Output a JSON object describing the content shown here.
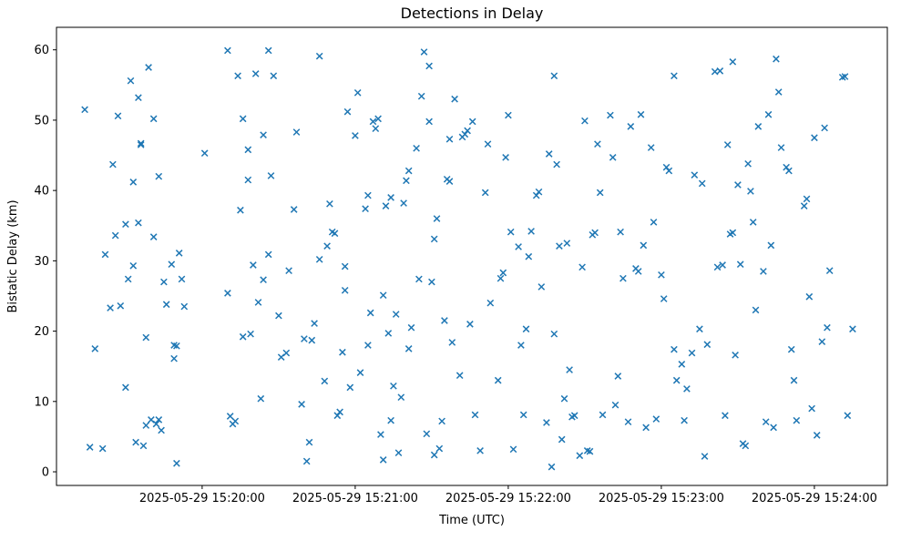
{
  "chart_data": {
    "type": "scatter",
    "title": "Detections in Delay",
    "xlabel": "Time (UTC)",
    "ylabel": "Bistatic Delay (km)",
    "marker": "x",
    "marker_color": "#1f77b4",
    "background_color": "#ffffff",
    "grid": false,
    "legend": false,
    "x_unit": "seconds after 2025-05-29 15:19:00 UTC",
    "xlim": [
      2.9,
      328.6
    ],
    "ylim": [
      -1.94,
      63.2
    ],
    "x_ticks": [
      {
        "t": 60,
        "label": "2025-05-29 15:20:00"
      },
      {
        "t": 120,
        "label": "2025-05-29 15:21:00"
      },
      {
        "t": 180,
        "label": "2025-05-29 15:22:00"
      },
      {
        "t": 240,
        "label": "2025-05-29 15:23:00"
      },
      {
        "t": 300,
        "label": "2025-05-29 15:24:00"
      }
    ],
    "y_ticks": [
      0,
      10,
      20,
      30,
      40,
      50,
      60
    ],
    "points": [
      [
        14,
        51.5
      ],
      [
        16,
        3.5
      ],
      [
        18,
        17.5
      ],
      [
        21,
        3.3
      ],
      [
        22,
        30.9
      ],
      [
        24,
        23.3
      ],
      [
        25,
        43.7
      ],
      [
        26,
        33.6
      ],
      [
        27,
        50.6
      ],
      [
        28,
        23.6
      ],
      [
        30,
        12.0
      ],
      [
        30,
        35.2
      ],
      [
        31,
        27.4
      ],
      [
        32,
        55.6
      ],
      [
        33,
        41.2
      ],
      [
        33,
        29.3
      ],
      [
        34,
        4.2
      ],
      [
        35,
        53.2
      ],
      [
        35,
        35.4
      ],
      [
        36,
        46.5
      ],
      [
        36,
        46.7
      ],
      [
        37,
        3.7
      ],
      [
        38,
        6.6
      ],
      [
        38,
        19.1
      ],
      [
        39,
        57.5
      ],
      [
        40,
        7.4
      ],
      [
        41,
        33.4
      ],
      [
        41,
        50.2
      ],
      [
        42,
        6.8
      ],
      [
        43,
        7.4
      ],
      [
        43,
        42.0
      ],
      [
        44,
        5.9
      ],
      [
        45,
        27.0
      ],
      [
        46,
        23.8
      ],
      [
        48,
        29.5
      ],
      [
        49,
        16.1
      ],
      [
        49,
        18.0
      ],
      [
        50,
        17.9
      ],
      [
        50,
        1.2
      ],
      [
        51,
        31.1
      ],
      [
        52,
        27.4
      ],
      [
        53,
        23.5
      ],
      [
        61,
        45.3
      ],
      [
        70,
        25.4
      ],
      [
        70,
        59.9
      ],
      [
        71,
        7.9
      ],
      [
        72,
        6.8
      ],
      [
        73,
        7.2
      ],
      [
        74,
        56.3
      ],
      [
        75,
        37.2
      ],
      [
        76,
        50.2
      ],
      [
        76,
        19.2
      ],
      [
        78,
        41.5
      ],
      [
        78,
        45.8
      ],
      [
        79,
        19.6
      ],
      [
        80,
        29.4
      ],
      [
        81,
        56.6
      ],
      [
        82,
        24.1
      ],
      [
        83,
        10.4
      ],
      [
        84,
        47.9
      ],
      [
        84,
        27.3
      ],
      [
        86,
        59.9
      ],
      [
        86,
        30.9
      ],
      [
        87,
        42.1
      ],
      [
        88,
        56.3
      ],
      [
        90,
        22.2
      ],
      [
        91,
        16.3
      ],
      [
        93,
        16.9
      ],
      [
        94,
        28.6
      ],
      [
        96,
        37.3
      ],
      [
        97,
        48.3
      ],
      [
        99,
        9.6
      ],
      [
        100,
        18.9
      ],
      [
        101,
        1.5
      ],
      [
        102,
        4.2
      ],
      [
        103,
        18.7
      ],
      [
        104,
        21.1
      ],
      [
        106,
        30.2
      ],
      [
        106,
        59.1
      ],
      [
        108,
        12.9
      ],
      [
        109,
        32.1
      ],
      [
        110,
        38.1
      ],
      [
        111,
        34.1
      ],
      [
        112,
        33.9
      ],
      [
        113,
        8.0
      ],
      [
        114,
        8.5
      ],
      [
        115,
        17.0
      ],
      [
        116,
        25.8
      ],
      [
        116,
        29.2
      ],
      [
        117,
        51.2
      ],
      [
        118,
        12.0
      ],
      [
        120,
        47.8
      ],
      [
        121,
        53.9
      ],
      [
        122,
        14.1
      ],
      [
        124,
        37.4
      ],
      [
        125,
        39.3
      ],
      [
        125,
        18.0
      ],
      [
        126,
        22.6
      ],
      [
        127,
        49.8
      ],
      [
        128,
        48.8
      ],
      [
        129,
        50.2
      ],
      [
        130,
        5.3
      ],
      [
        131,
        1.7
      ],
      [
        131,
        25.1
      ],
      [
        132,
        37.8
      ],
      [
        133,
        19.7
      ],
      [
        134,
        7.3
      ],
      [
        134,
        39.0
      ],
      [
        135,
        12.2
      ],
      [
        136,
        22.4
      ],
      [
        137,
        2.7
      ],
      [
        138,
        10.6
      ],
      [
        139,
        38.2
      ],
      [
        140,
        41.4
      ],
      [
        141,
        17.5
      ],
      [
        141,
        42.8
      ],
      [
        142,
        20.5
      ],
      [
        144,
        46.0
      ],
      [
        145,
        27.4
      ],
      [
        146,
        53.4
      ],
      [
        147,
        59.7
      ],
      [
        148,
        5.4
      ],
      [
        149,
        49.8
      ],
      [
        149,
        57.7
      ],
      [
        150,
        27.0
      ],
      [
        151,
        2.4
      ],
      [
        151,
        33.1
      ],
      [
        152,
        36.0
      ],
      [
        153,
        3.3
      ],
      [
        154,
        7.2
      ],
      [
        155,
        21.5
      ],
      [
        156,
        41.6
      ],
      [
        157,
        47.3
      ],
      [
        157,
        41.3
      ],
      [
        158,
        18.4
      ],
      [
        159,
        53.0
      ],
      [
        161,
        13.7
      ],
      [
        162,
        47.6
      ],
      [
        163,
        48.0
      ],
      [
        164,
        48.5
      ],
      [
        165,
        21.0
      ],
      [
        166,
        49.8
      ],
      [
        167,
        8.1
      ],
      [
        169,
        3.0
      ],
      [
        171,
        39.7
      ],
      [
        172,
        46.6
      ],
      [
        173,
        24.0
      ],
      [
        176,
        13.0
      ],
      [
        177,
        27.5
      ],
      [
        178,
        28.3
      ],
      [
        179,
        44.7
      ],
      [
        180,
        50.7
      ],
      [
        181,
        34.1
      ],
      [
        182,
        3.2
      ],
      [
        184,
        32.0
      ],
      [
        185,
        18.0
      ],
      [
        186,
        8.1
      ],
      [
        187,
        20.3
      ],
      [
        188,
        30.6
      ],
      [
        189,
        34.2
      ],
      [
        191,
        39.3
      ],
      [
        192,
        39.8
      ],
      [
        193,
        26.3
      ],
      [
        195,
        7.0
      ],
      [
        196,
        45.2
      ],
      [
        197,
        0.7
      ],
      [
        198,
        19.6
      ],
      [
        198,
        56.3
      ],
      [
        199,
        43.7
      ],
      [
        200,
        32.1
      ],
      [
        201,
        4.6
      ],
      [
        202,
        10.4
      ],
      [
        203,
        32.5
      ],
      [
        204,
        14.5
      ],
      [
        205,
        7.8
      ],
      [
        206,
        8.0
      ],
      [
        208,
        2.3
      ],
      [
        209,
        29.1
      ],
      [
        210,
        49.9
      ],
      [
        211,
        3.0
      ],
      [
        212,
        2.9
      ],
      [
        213,
        33.7
      ],
      [
        214,
        34.0
      ],
      [
        215,
        46.6
      ],
      [
        216,
        39.7
      ],
      [
        217,
        8.1
      ],
      [
        220,
        50.7
      ],
      [
        221,
        44.7
      ],
      [
        222,
        9.5
      ],
      [
        223,
        13.6
      ],
      [
        224,
        34.1
      ],
      [
        225,
        27.5
      ],
      [
        227,
        7.1
      ],
      [
        228,
        49.1
      ],
      [
        230,
        28.9
      ],
      [
        231,
        28.5
      ],
      [
        232,
        50.8
      ],
      [
        233,
        32.2
      ],
      [
        234,
        6.3
      ],
      [
        236,
        46.1
      ],
      [
        237,
        35.5
      ],
      [
        238,
        7.5
      ],
      [
        240,
        28.0
      ],
      [
        241,
        24.6
      ],
      [
        242,
        43.3
      ],
      [
        243,
        42.8
      ],
      [
        245,
        17.4
      ],
      [
        245,
        56.3
      ],
      [
        246,
        13.0
      ],
      [
        248,
        15.3
      ],
      [
        249,
        7.3
      ],
      [
        250,
        11.8
      ],
      [
        252,
        16.9
      ],
      [
        253,
        42.2
      ],
      [
        255,
        20.3
      ],
      [
        256,
        41.0
      ],
      [
        257,
        2.2
      ],
      [
        258,
        18.1
      ],
      [
        261,
        56.9
      ],
      [
        262,
        29.1
      ],
      [
        263,
        57.0
      ],
      [
        264,
        29.4
      ],
      [
        265,
        8.0
      ],
      [
        266,
        46.5
      ],
      [
        267,
        33.8
      ],
      [
        268,
        34.0
      ],
      [
        268,
        58.3
      ],
      [
        269,
        16.6
      ],
      [
        270,
        40.8
      ],
      [
        271,
        29.5
      ],
      [
        272,
        4.0
      ],
      [
        273,
        3.7
      ],
      [
        274,
        43.8
      ],
      [
        275,
        39.9
      ],
      [
        276,
        35.5
      ],
      [
        277,
        23.0
      ],
      [
        278,
        49.1
      ],
      [
        280,
        28.5
      ],
      [
        281,
        7.1
      ],
      [
        282,
        50.8
      ],
      [
        283,
        32.2
      ],
      [
        284,
        6.3
      ],
      [
        285,
        58.7
      ],
      [
        286,
        54.0
      ],
      [
        287,
        46.1
      ],
      [
        289,
        43.3
      ],
      [
        290,
        42.8
      ],
      [
        291,
        17.4
      ],
      [
        292,
        13.0
      ],
      [
        293,
        7.3
      ],
      [
        296,
        37.8
      ],
      [
        297,
        38.8
      ],
      [
        298,
        24.9
      ],
      [
        299,
        9.0
      ],
      [
        300,
        47.5
      ],
      [
        301,
        5.2
      ],
      [
        303,
        18.5
      ],
      [
        304,
        48.9
      ],
      [
        305,
        20.5
      ],
      [
        306,
        28.6
      ],
      [
        311,
        56.1
      ],
      [
        312,
        56.2
      ],
      [
        313,
        8.0
      ],
      [
        315,
        20.3
      ]
    ]
  }
}
